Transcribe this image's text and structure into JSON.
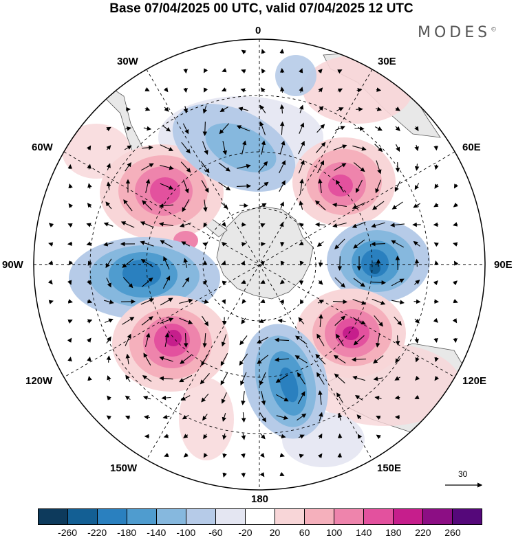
{
  "title": "Base 07/04/2025 00 UTC, valid 07/04/2025 12 UTC",
  "brand": "MODES",
  "brand_mark": "©",
  "longitude_labels": {
    "n0": "0",
    "n30e": "30E",
    "n60e": "60E",
    "n90e": "90E",
    "n120e": "120E",
    "n150e": "150E",
    "n180": "180",
    "n150w": "150W",
    "n120w": "120W",
    "n90w": "90W",
    "n60w": "60W",
    "n30w": "30W"
  },
  "reference_vector_label": "30",
  "colorbar": {
    "colors": [
      "#0d3a5c",
      "#135f94",
      "#2a80bf",
      "#4f9ccf",
      "#86b8de",
      "#b6cbe8",
      "#e4e6f2",
      "#ffffff",
      "#f8d6d8",
      "#f5b0bc",
      "#ee84ac",
      "#e3519e",
      "#c61e8c",
      "#8c0e84",
      "#55087a"
    ],
    "tick_labels": [
      "-260",
      "-220",
      "-180",
      "-140",
      "-100",
      "-60",
      "-20",
      "20",
      "60",
      "100",
      "140",
      "180",
      "220",
      "260"
    ]
  },
  "colors": {
    "land": "#e8e8e8",
    "graticule": "#000000",
    "coastline": "#444444"
  }
}
